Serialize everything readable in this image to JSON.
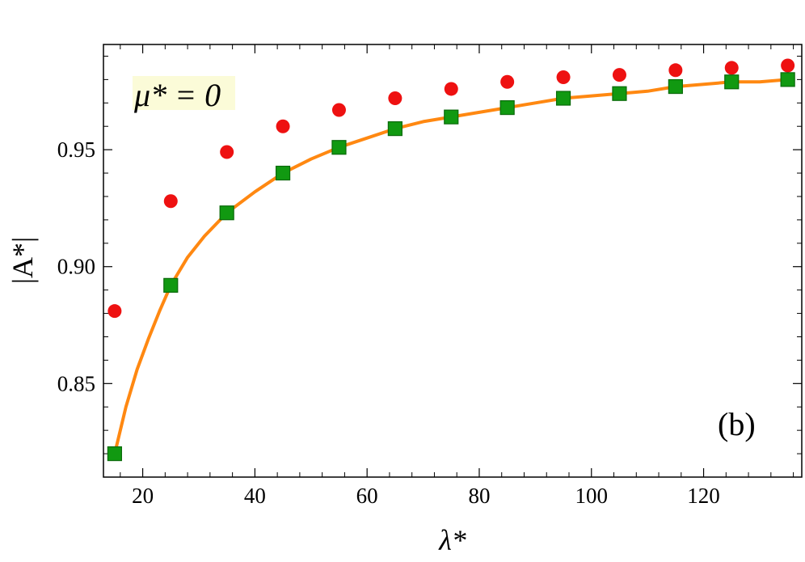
{
  "chart_data": {
    "type": "scatter",
    "xlabel": "λ*",
    "ylabel": "|A*|",
    "xlim": [
      13,
      137.5
    ],
    "ylim": [
      0.81,
      0.995
    ],
    "xticks": [
      20,
      40,
      60,
      80,
      100,
      120
    ],
    "yticks": [
      0.85,
      0.9,
      0.95
    ],
    "xtick_labels": [
      "20",
      "40",
      "60",
      "80",
      "100",
      "120"
    ],
    "ytick_labels": [
      "0.85",
      "0.90",
      "0.95"
    ],
    "grid": false,
    "annotations": {
      "mu_label": "μ* = 0",
      "panel_label": "(b)"
    },
    "series": [
      {
        "marker": "circle",
        "color": "#ee1111",
        "x": [
          15,
          25,
          35,
          45,
          55,
          65,
          75,
          85,
          95,
          105,
          115,
          125,
          135
        ],
        "y": [
          0.881,
          0.928,
          0.949,
          0.96,
          0.967,
          0.972,
          0.976,
          0.979,
          0.981,
          0.982,
          0.984,
          0.985,
          0.986
        ]
      },
      {
        "marker": "square",
        "color": "#119911",
        "x": [
          15,
          25,
          35,
          45,
          55,
          65,
          75,
          85,
          95,
          105,
          115,
          125,
          135
        ],
        "y": [
          0.82,
          0.892,
          0.923,
          0.94,
          0.951,
          0.959,
          0.964,
          0.968,
          0.972,
          0.974,
          0.977,
          0.979,
          0.98
        ]
      },
      {
        "marker": "line",
        "color": "#ff8811",
        "x": [
          15,
          17,
          19,
          21,
          23,
          25,
          28,
          31,
          35,
          40,
          45,
          50,
          55,
          60,
          65,
          70,
          75,
          80,
          85,
          90,
          95,
          100,
          105,
          110,
          115,
          120,
          125,
          130,
          135
        ],
        "y": [
          0.82,
          0.84,
          0.856,
          0.869,
          0.881,
          0.892,
          0.904,
          0.913,
          0.923,
          0.932,
          0.94,
          0.946,
          0.951,
          0.955,
          0.959,
          0.962,
          0.964,
          0.966,
          0.968,
          0.97,
          0.972,
          0.973,
          0.974,
          0.975,
          0.977,
          0.978,
          0.979,
          0.979,
          0.98
        ]
      }
    ]
  }
}
